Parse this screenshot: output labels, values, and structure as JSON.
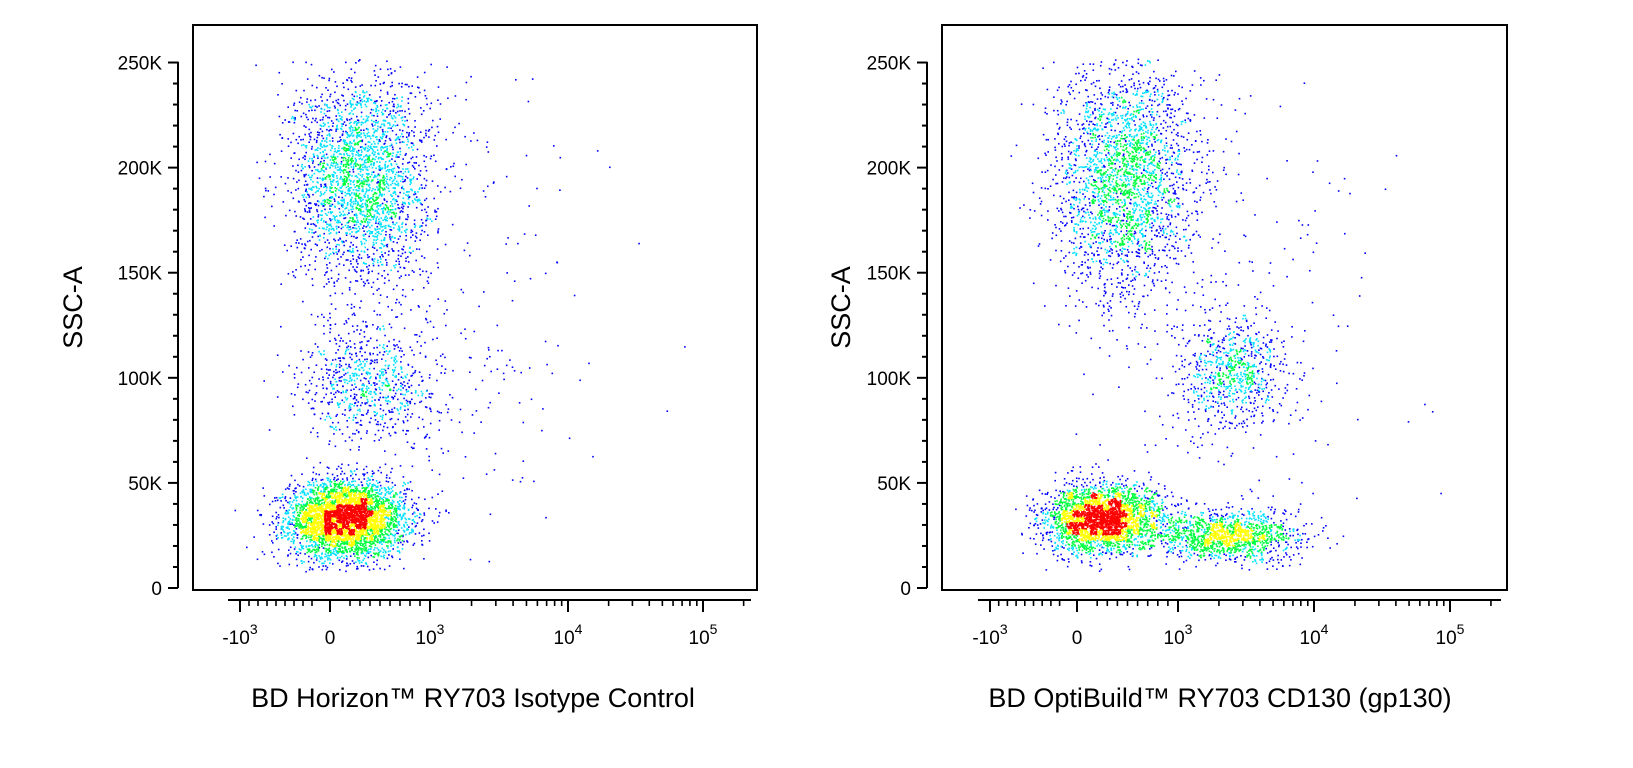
{
  "chart_data": [
    {
      "type": "scatter",
      "subtype": "flow-cytometry-pseudocolor-density",
      "xlabel": "BD Horizon™ RY703 Isotype Control",
      "ylabel": "SSC-A",
      "x_scale": "biexponential",
      "x_ticks": [
        -1000,
        0,
        1000,
        10000,
        100000
      ],
      "x_tick_labels": [
        "-10^3",
        "0",
        "10^3",
        "10^4",
        "10^5"
      ],
      "ylim": [
        0,
        262144
      ],
      "y_ticks": [
        0,
        50000,
        100000,
        150000,
        200000,
        250000
      ],
      "y_tick_labels": [
        "0",
        "50K",
        "100K",
        "150K",
        "200K",
        "250K"
      ],
      "density_colors": [
        "#0000ff",
        "#00e0ff",
        "#00ff40",
        "#ffff00",
        "#ff0000"
      ],
      "populations": [
        {
          "x_center": 150,
          "x_spread_decades": 0.3,
          "y_center": 33000,
          "y_spread": 9000,
          "n": 4200
        },
        {
          "x_center": 300,
          "x_spread_decades": 0.35,
          "y_center": 195000,
          "y_spread": 25000,
          "n": 2600
        },
        {
          "x_center": 400,
          "x_spread_decades": 0.35,
          "y_center": 98000,
          "y_spread": 14000,
          "n": 750
        },
        {
          "x_center": 1500,
          "x_spread_decades": 0.55,
          "y_center": 110000,
          "y_spread": 70000,
          "n": 230
        }
      ]
    },
    {
      "type": "scatter",
      "subtype": "flow-cytometry-pseudocolor-density",
      "xlabel": "BD OptiBuild™ RY703 CD130 (gp130)",
      "ylabel": "SSC-A",
      "x_scale": "biexponential",
      "x_ticks": [
        -1000,
        0,
        1000,
        10000,
        100000
      ],
      "x_tick_labels": [
        "-10^3",
        "0",
        "10^3",
        "10^4",
        "10^5"
      ],
      "ylim": [
        0,
        262144
      ],
      "y_ticks": [
        0,
        50000,
        100000,
        150000,
        200000,
        250000
      ],
      "y_tick_labels": [
        "0",
        "50K",
        "100K",
        "150K",
        "200K",
        "250K"
      ],
      "density_colors": [
        "#0000ff",
        "#00e0ff",
        "#00ff40",
        "#ffff00",
        "#ff0000"
      ],
      "populations": [
        {
          "x_center": 250,
          "x_spread_decades": 0.3,
          "y_center": 33000,
          "y_spread": 8000,
          "n": 3000
        },
        {
          "x_center": 2300,
          "x_spread_decades": 0.25,
          "y_center": 25000,
          "y_spread": 6000,
          "n": 1300
        },
        {
          "x_center": 450,
          "x_spread_decades": 0.35,
          "y_center": 195000,
          "y_spread": 28000,
          "n": 2600
        },
        {
          "x_center": 2500,
          "x_spread_decades": 0.2,
          "y_center": 102000,
          "y_spread": 13000,
          "n": 750
        },
        {
          "x_center": 2500,
          "x_spread_decades": 0.6,
          "y_center": 120000,
          "y_spread": 70000,
          "n": 230
        }
      ]
    }
  ]
}
